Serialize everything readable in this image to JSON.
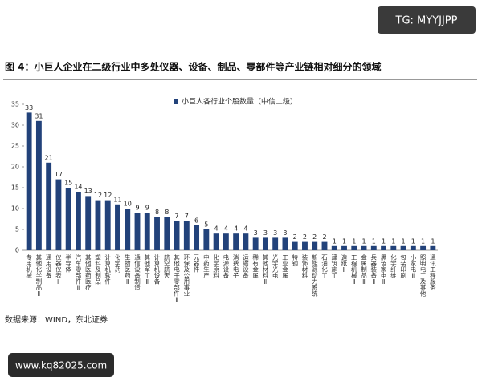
{
  "chart_data": {
    "type": "bar",
    "title": "图 4：小巨人企业在二级行业中多处仪器、设备、制品、零部件等产业链相对细分的领域",
    "source": "数据来源：WIND，东北证券",
    "watermark_top": "TG: MYYJJPP",
    "watermark_bottom": "www.kq82025.com",
    "series": [
      {
        "name": "小巨人各行业个股数量（中信二级）",
        "color": "#22427a",
        "values": [
          33,
          31,
          21,
          17,
          15,
          14,
          13,
          12,
          12,
          11,
          10,
          9,
          9,
          8,
          8,
          7,
          7,
          6,
          5,
          4,
          4,
          4,
          4,
          3,
          3,
          3,
          3,
          2,
          2,
          2,
          2,
          1,
          1,
          1,
          1,
          1,
          1,
          1,
          1,
          1,
          1,
          1
        ]
      }
    ],
    "categories": [
      "专用机械",
      "其他化学制品Ⅱ",
      "通用设备",
      "仪器仪表Ⅱ",
      "半导体",
      "汽车零部件Ⅱ",
      "其他医药医疗",
      "塑料及制品",
      "计算机软件",
      "化学药",
      "生物医药Ⅱ",
      "通信设备制造",
      "其他军工Ⅱ",
      "计算机设备",
      "航空航天",
      "其他电子零部件Ⅱ",
      "环保及公用事业",
      "元器件",
      "中药生产",
      "化学原料",
      "电源设备",
      "消费电子",
      "运输设备",
      "稀有金属",
      "其他材料Ⅱ",
      "光学光电",
      "工业金属",
      "特钢",
      "装饰材料",
      "新能源动力系统",
      "石油化工",
      "建筑施工",
      "造纸Ⅱ",
      "工程机械Ⅱ",
      "金属制品Ⅱ",
      "兵器装备Ⅱ",
      "黑色家电Ⅱ",
      "化学纤维",
      "包装印刷",
      "小家电Ⅱ",
      "照明电工及其他",
      "通讯工程服务"
    ],
    "ylim": [
      0,
      35
    ],
    "yticks": [
      0,
      5,
      10,
      15,
      20,
      25,
      30,
      35
    ]
  }
}
